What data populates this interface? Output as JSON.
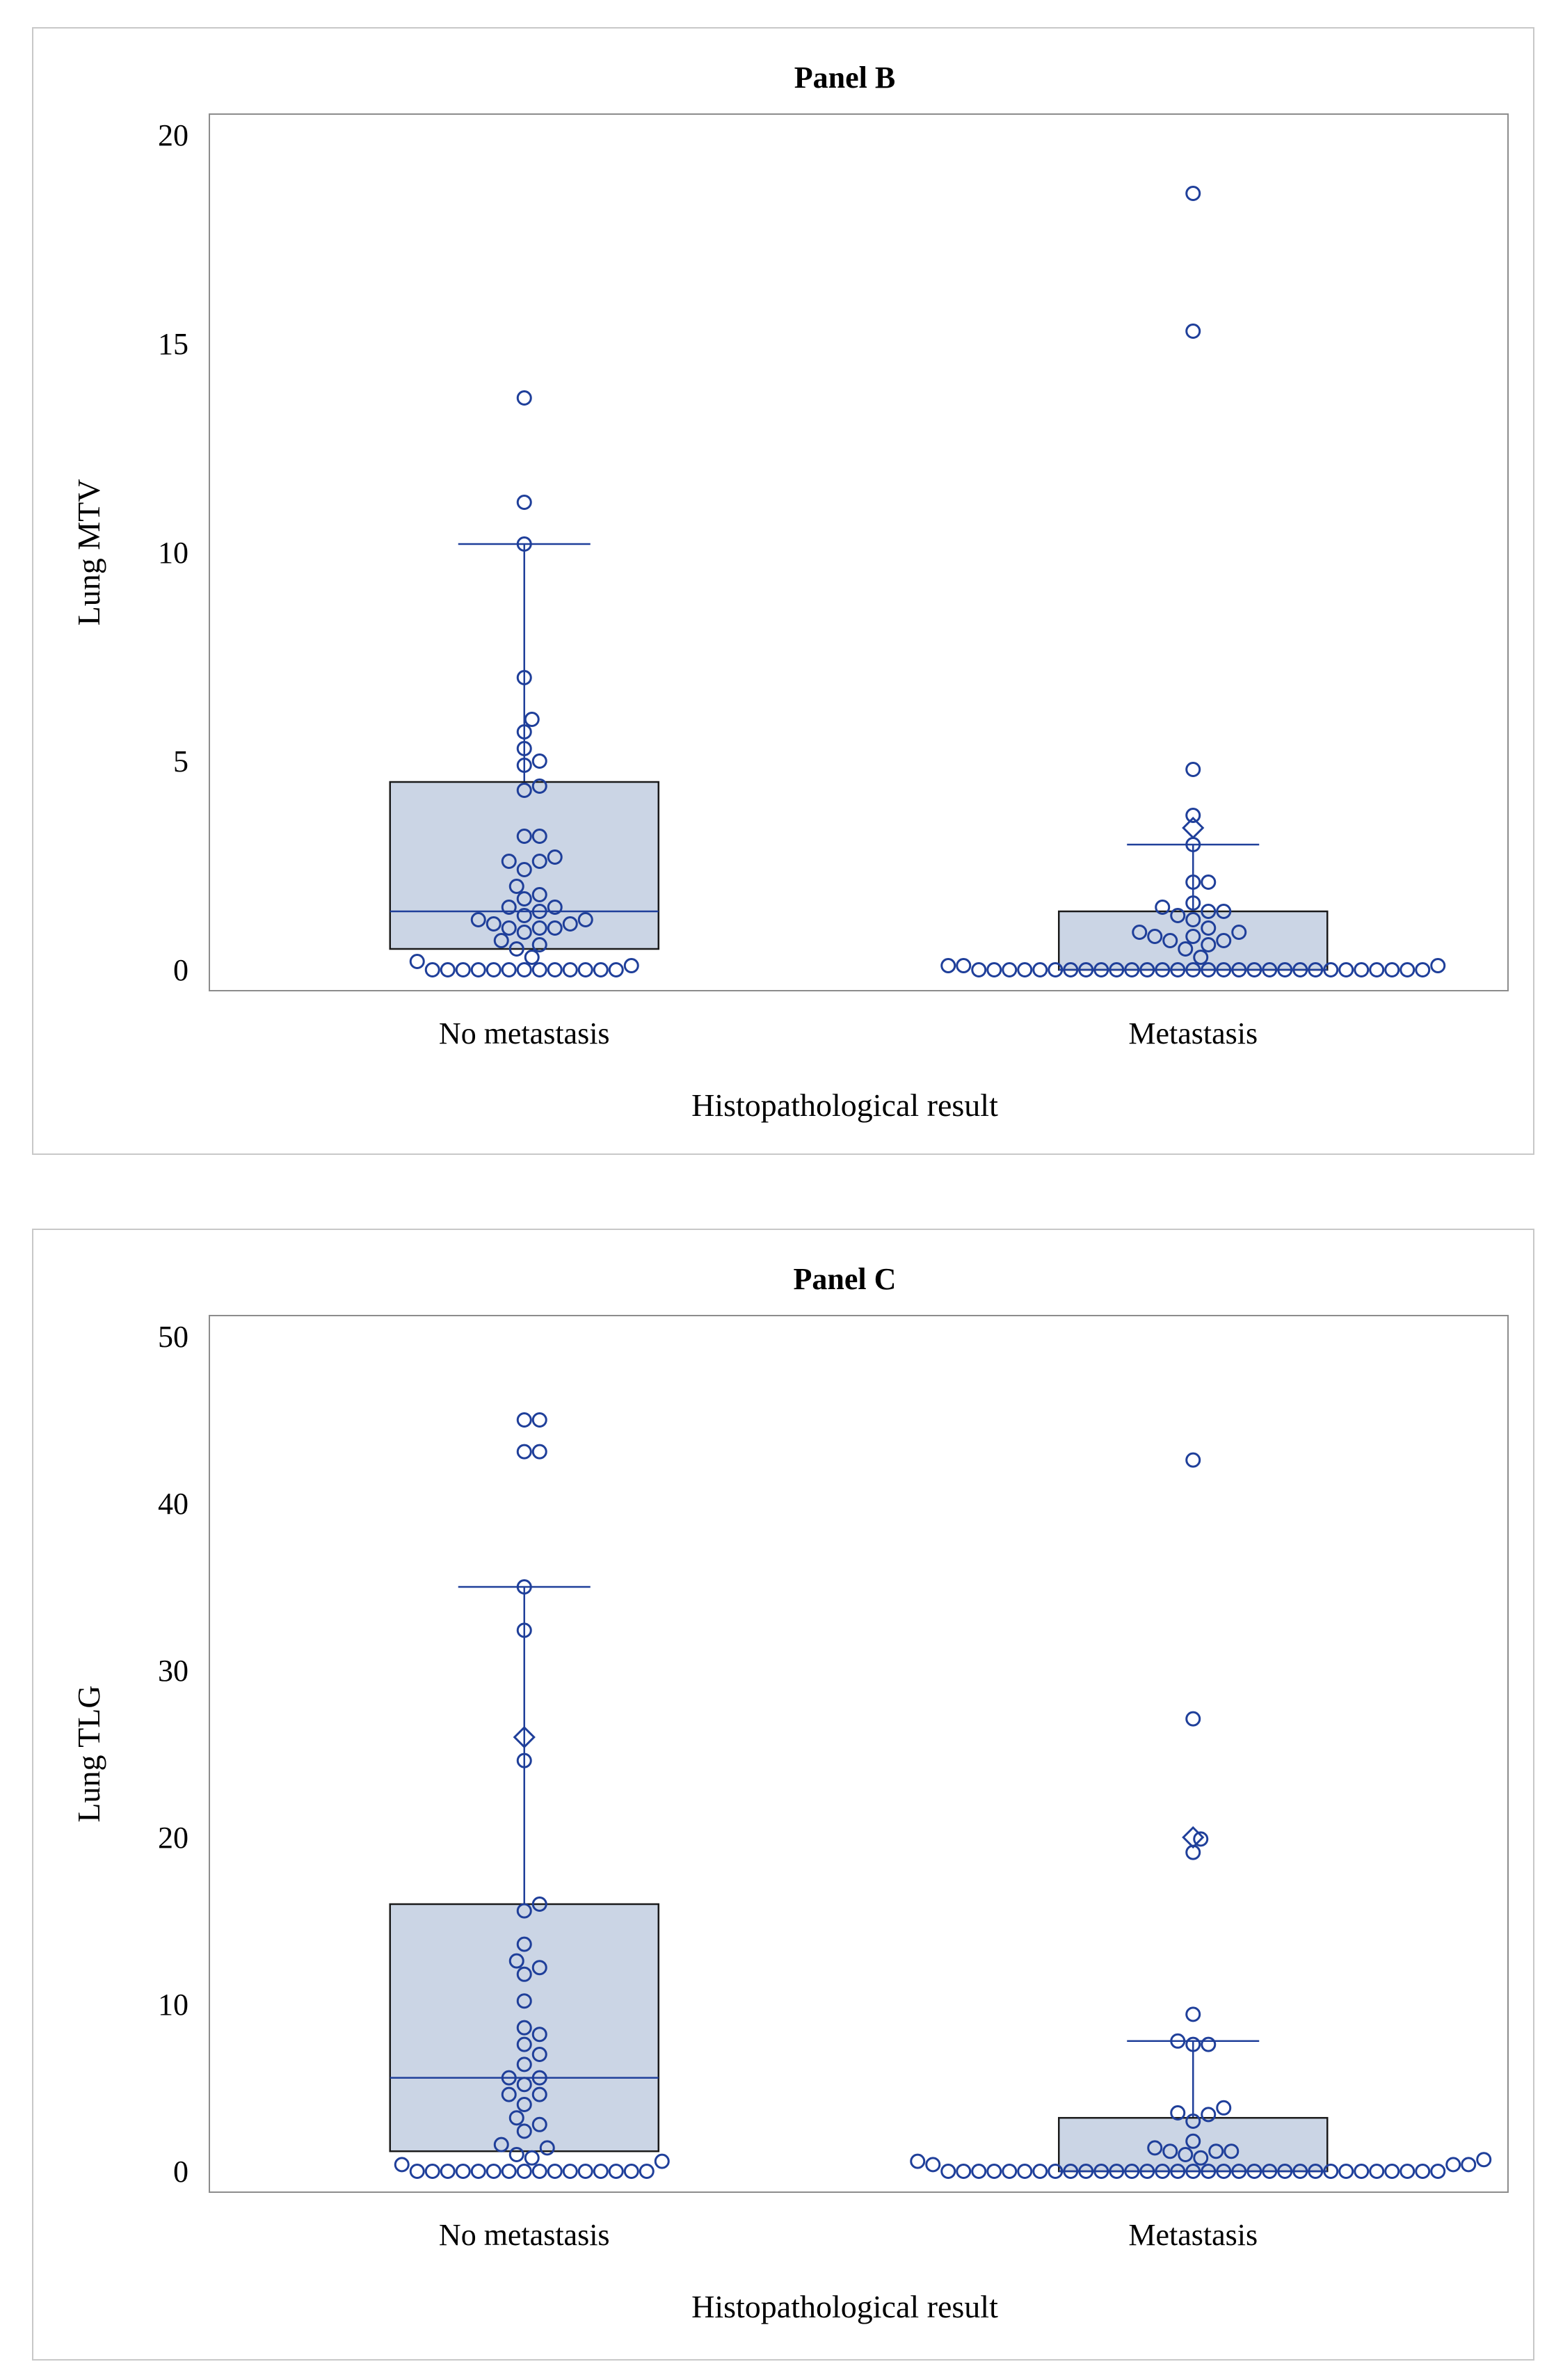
{
  "chart_data": [
    {
      "type": "box",
      "title": "Panel B",
      "xlabel": "Histopathological result",
      "ylabel": "Lung MTV",
      "ylim": [
        0,
        20
      ],
      "yticks": [
        0,
        5,
        10,
        15,
        20
      ],
      "grid": false,
      "colors": {
        "box_fill": "#cbd5e5",
        "box_edge": "#1a1a1a",
        "marker": "#1f3f9a",
        "whisker": "#1f3f9a"
      },
      "groups": [
        {
          "category": "No metastasis",
          "q1": 0.5,
          "median": 1.4,
          "q3": 4.5,
          "whisker_low": 0,
          "whisker_high": 10.2,
          "mean": null,
          "points": [
            13.7,
            11.2,
            10.2,
            7.0,
            6.0,
            5.7,
            5.3,
            5.0,
            4.9,
            4.4,
            4.3,
            3.2,
            3.2,
            2.7,
            2.6,
            2.6,
            2.4,
            2.0,
            1.8,
            1.7,
            1.5,
            1.5,
            1.4,
            1.3,
            1.2,
            1.2,
            1.1,
            1.1,
            1.0,
            1.0,
            1.0,
            0.9,
            0.7,
            0.6,
            0.5,
            0.3,
            0.2,
            0.1,
            0,
            0,
            0,
            0,
            0,
            0,
            0,
            0,
            0,
            0,
            0,
            0,
            0
          ]
        },
        {
          "category": "Metastasis",
          "q1": 0,
          "median": 0,
          "q3": 1.4,
          "whisker_low": 0,
          "whisker_high": 3.0,
          "mean": 3.4,
          "points": [
            18.6,
            15.3,
            4.8,
            3.7,
            3.0,
            2.1,
            2.1,
            1.6,
            1.5,
            1.4,
            1.4,
            1.3,
            1.2,
            1.0,
            0.9,
            0.9,
            0.8,
            0.8,
            0.7,
            0.7,
            0.6,
            0.5,
            0.3,
            0.1,
            0.1,
            0.1,
            0,
            0,
            0,
            0,
            0,
            0,
            0,
            0,
            0,
            0,
            0,
            0,
            0,
            0,
            0,
            0,
            0,
            0,
            0,
            0,
            0,
            0,
            0,
            0,
            0,
            0,
            0,
            0,
            0,
            0
          ]
        }
      ]
    },
    {
      "type": "box",
      "title": "Panel C",
      "xlabel": "Histopathological result",
      "ylabel": "Lung TLG",
      "ylim": [
        0,
        50
      ],
      "yticks": [
        0,
        10,
        20,
        30,
        40,
        50
      ],
      "grid": false,
      "colors": {
        "box_fill": "#cbd5e5",
        "box_edge": "#1a1a1a",
        "marker": "#1f3f9a",
        "whisker": "#1f3f9a"
      },
      "groups": [
        {
          "category": "No metastasis",
          "q1": 1.2,
          "median": 5.6,
          "q3": 16.0,
          "whisker_low": 0,
          "whisker_high": 35.0,
          "mean": 26.0,
          "points": [
            45,
            45,
            43.1,
            43.1,
            35.0,
            32.4,
            24.6,
            16.0,
            15.6,
            13.6,
            12.6,
            12.2,
            11.8,
            10.2,
            8.6,
            8.2,
            7.6,
            7.0,
            6.4,
            5.6,
            5.6,
            5.2,
            4.6,
            4.6,
            4.0,
            3.2,
            2.8,
            2.4,
            1.6,
            1.4,
            1.0,
            0.8,
            0.6,
            0.4,
            0,
            0,
            0,
            0,
            0,
            0,
            0,
            0,
            0,
            0,
            0,
            0,
            0,
            0,
            0,
            0
          ]
        },
        {
          "category": "Metastasis",
          "q1": 0,
          "median": 0,
          "q3": 3.2,
          "whisker_low": 0,
          "whisker_high": 7.8,
          "mean": 20.0,
          "points": [
            42.6,
            27.1,
            19.9,
            19.1,
            9.4,
            7.8,
            7.6,
            7.6,
            3.8,
            3.5,
            3.4,
            3.0,
            1.8,
            1.4,
            1.2,
            1.2,
            1.2,
            1.0,
            0.8,
            0.7,
            0.6,
            0.4,
            0.4,
            0.4,
            0,
            0,
            0,
            0,
            0,
            0,
            0,
            0,
            0,
            0,
            0,
            0,
            0,
            0,
            0,
            0,
            0,
            0,
            0,
            0,
            0,
            0,
            0,
            0,
            0,
            0,
            0,
            0,
            0,
            0,
            0,
            0,
            0
          ]
        }
      ]
    }
  ]
}
